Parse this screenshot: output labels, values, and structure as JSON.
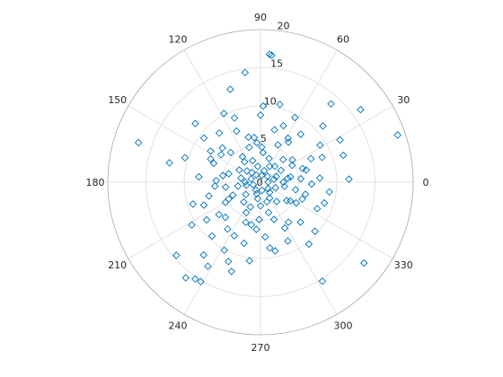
{
  "chart_data": {
    "type": "scatter",
    "coordinate_system": "polar",
    "marker": "diamond",
    "marker_color": "#0072bd",
    "theta_ticks": [
      "0",
      "30",
      "60",
      "90",
      "120",
      "150",
      "180",
      "210",
      "240",
      "270",
      "300",
      "330"
    ],
    "r_ticks": [
      "5",
      "10",
      "15",
      "20"
    ],
    "r_center_label": "0",
    "rlim": [
      0,
      20
    ],
    "grid": true,
    "points": [
      {
        "theta": 1,
        "r": 1
      },
      {
        "theta": 40,
        "r": 1.2
      },
      {
        "theta": 80,
        "r": 0.9
      },
      {
        "theta": 120,
        "r": 1.1
      },
      {
        "theta": 160,
        "r": 1.3
      },
      {
        "theta": 200,
        "r": 1.0
      },
      {
        "theta": 240,
        "r": 1.2
      },
      {
        "theta": 280,
        "r": 1.1
      },
      {
        "theta": 320,
        "r": 1.3
      },
      {
        "theta": 20,
        "r": 2.2
      },
      {
        "theta": 60,
        "r": 2.4
      },
      {
        "theta": 100,
        "r": 2.1
      },
      {
        "theta": 140,
        "r": 2.3
      },
      {
        "theta": 180,
        "r": 2.0
      },
      {
        "theta": 220,
        "r": 2.5
      },
      {
        "theta": 260,
        "r": 2.2
      },
      {
        "theta": 300,
        "r": 2.4
      },
      {
        "theta": 340,
        "r": 2.1
      },
      {
        "theta": 0,
        "r": 3.0
      },
      {
        "theta": 30,
        "r": 3.1
      },
      {
        "theta": 70,
        "r": 3.3
      },
      {
        "theta": 110,
        "r": 3.0
      },
      {
        "theta": 150,
        "r": 3.2
      },
      {
        "theta": 190,
        "r": 3.0
      },
      {
        "theta": 230,
        "r": 3.4
      },
      {
        "theta": 270,
        "r": 3.1
      },
      {
        "theta": 310,
        "r": 3.3
      },
      {
        "theta": 350,
        "r": 3.2
      },
      {
        "theta": 10,
        "r": 4.0
      },
      {
        "theta": 45,
        "r": 4.2
      },
      {
        "theta": 85,
        "r": 3.9
      },
      {
        "theta": 125,
        "r": 4.1
      },
      {
        "theta": 165,
        "r": 4.3
      },
      {
        "theta": 205,
        "r": 4.0
      },
      {
        "theta": 245,
        "r": 4.4
      },
      {
        "theta": 285,
        "r": 4.1
      },
      {
        "theta": 325,
        "r": 4.2
      },
      {
        "theta": 5,
        "r": 5.3
      },
      {
        "theta": 35,
        "r": 5.1
      },
      {
        "theta": 65,
        "r": 5.4
      },
      {
        "theta": 95,
        "r": 5.2
      },
      {
        "theta": 135,
        "r": 5.5
      },
      {
        "theta": 170,
        "r": 5.0
      },
      {
        "theta": 210,
        "r": 5.3
      },
      {
        "theta": 250,
        "r": 5.6
      },
      {
        "theta": 290,
        "r": 5.2
      },
      {
        "theta": 330,
        "r": 5.4
      },
      {
        "theta": 15,
        "r": 6.2
      },
      {
        "theta": 55,
        "r": 6.4
      },
      {
        "theta": 105,
        "r": 6.1
      },
      {
        "theta": 145,
        "r": 6.3
      },
      {
        "theta": 185,
        "r": 6.0
      },
      {
        "theta": 225,
        "r": 6.5
      },
      {
        "theta": 265,
        "r": 6.2
      },
      {
        "theta": 305,
        "r": 6.4
      },
      {
        "theta": 345,
        "r": 6.1
      },
      {
        "theta": 25,
        "r": 7.3
      },
      {
        "theta": 75,
        "r": 7.1
      },
      {
        "theta": 115,
        "r": 7.4
      },
      {
        "theta": 155,
        "r": 7.2
      },
      {
        "theta": 195,
        "r": 7.0
      },
      {
        "theta": 235,
        "r": 7.5
      },
      {
        "theta": 275,
        "r": 7.2
      },
      {
        "theta": 315,
        "r": 7.4
      },
      {
        "theta": 50,
        "r": 8.2
      },
      {
        "theta": 130,
        "r": 8.4
      },
      {
        "theta": 175,
        "r": 8.1
      },
      {
        "theta": 215,
        "r": 8.6
      },
      {
        "theta": 255,
        "r": 8.3
      },
      {
        "theta": 295,
        "r": 8.5
      },
      {
        "theta": 335,
        "r": 8.2
      },
      {
        "theta": 90,
        "r": 8.8
      },
      {
        "theta": 8,
        "r": 3.6
      },
      {
        "theta": 48,
        "r": 2.8
      },
      {
        "theta": 88,
        "r": 4.6
      },
      {
        "theta": 128,
        "r": 3.4
      },
      {
        "theta": 168,
        "r": 2.6
      },
      {
        "theta": 208,
        "r": 4.7
      },
      {
        "theta": 248,
        "r": 3.5
      },
      {
        "theta": 288,
        "r": 2.7
      },
      {
        "theta": 328,
        "r": 4.6
      },
      {
        "theta": 18,
        "r": 5.8
      },
      {
        "theta": 58,
        "r": 6.8
      },
      {
        "theta": 98,
        "r": 5.9
      },
      {
        "theta": 138,
        "r": 6.7
      },
      {
        "theta": 178,
        "r": 5.8
      },
      {
        "theta": 218,
        "r": 6.9
      },
      {
        "theta": 258,
        "r": 5.7
      },
      {
        "theta": 298,
        "r": 6.8
      },
      {
        "theta": 338,
        "r": 5.9
      },
      {
        "theta": 12,
        "r": 1.8
      },
      {
        "theta": 72,
        "r": 1.6
      },
      {
        "theta": 132,
        "r": 1.7
      },
      {
        "theta": 192,
        "r": 1.9
      },
      {
        "theta": 252,
        "r": 1.6
      },
      {
        "theta": 312,
        "r": 1.8
      },
      {
        "theta": 28,
        "r": 4.7
      },
      {
        "theta": 108,
        "r": 4.8
      },
      {
        "theta": 188,
        "r": 4.6
      },
      {
        "theta": 268,
        "r": 4.9
      },
      {
        "theta": 348,
        "r": 4.7
      },
      {
        "theta": 32,
        "r": 9.2
      },
      {
        "theta": 62,
        "r": 9.6
      },
      {
        "theta": 112,
        "r": 9.1
      },
      {
        "theta": 142,
        "r": 9.4
      },
      {
        "theta": 198,
        "r": 9.3
      },
      {
        "theta": 228,
        "r": 9.5
      },
      {
        "theta": 282,
        "r": 9.2
      },
      {
        "theta": 318,
        "r": 9.6
      },
      {
        "theta": 352,
        "r": 9.1
      },
      {
        "theta": 76,
        "r": 10.5
      },
      {
        "theta": 118,
        "r": 10.2
      },
      {
        "theta": 162,
        "r": 10.4
      },
      {
        "theta": 212,
        "r": 10.6
      },
      {
        "theta": 242,
        "r": 10.1
      },
      {
        "theta": 262,
        "r": 10.4
      },
      {
        "theta": 308,
        "r": 10.3
      },
      {
        "theta": 42,
        "r": 11.0
      },
      {
        "theta": 138,
        "r": 11.5
      },
      {
        "theta": 168,
        "r": 12.2
      },
      {
        "theta": 232,
        "r": 12.1
      },
      {
        "theta": 238,
        "r": 13.0
      },
      {
        "theta": 248,
        "r": 11.2
      },
      {
        "theta": 2,
        "r": 11.6
      },
      {
        "theta": 18,
        "r": 11.4
      },
      {
        "theta": 88,
        "r": 10.0
      },
      {
        "theta": 28,
        "r": 11.8
      },
      {
        "theta": 48,
        "r": 13.8
      },
      {
        "theta": 98,
        "r": 14.5
      },
      {
        "theta": 108,
        "r": 12.8
      },
      {
        "theta": 36,
        "r": 16.2
      },
      {
        "theta": 85,
        "r": 16.7
      },
      {
        "theta": 86,
        "r": 16.8
      },
      {
        "theta": 162,
        "r": 16.8
      },
      {
        "theta": 19,
        "r": 19.0
      },
      {
        "theta": 221,
        "r": 14.6
      },
      {
        "theta": 232,
        "r": 15.9
      },
      {
        "theta": 236,
        "r": 15.3
      },
      {
        "theta": 239,
        "r": 15.2
      },
      {
        "theta": 252,
        "r": 12.3
      },
      {
        "theta": 302,
        "r": 15.3
      },
      {
        "theta": 322,
        "r": 17.2
      },
      {
        "theta": 4,
        "r": 7.8
      },
      {
        "theta": 22,
        "r": 8.7
      },
      {
        "theta": 68,
        "r": 8.0
      },
      {
        "theta": 148,
        "r": 7.7
      },
      {
        "theta": 158,
        "r": 6.6
      },
      {
        "theta": 202,
        "r": 8.0
      },
      {
        "theta": 278,
        "r": 8.7
      },
      {
        "theta": 342,
        "r": 8.8
      },
      {
        "theta": 358,
        "r": 6.7
      },
      {
        "theta": 244,
        "r": 7.8
      }
    ]
  }
}
